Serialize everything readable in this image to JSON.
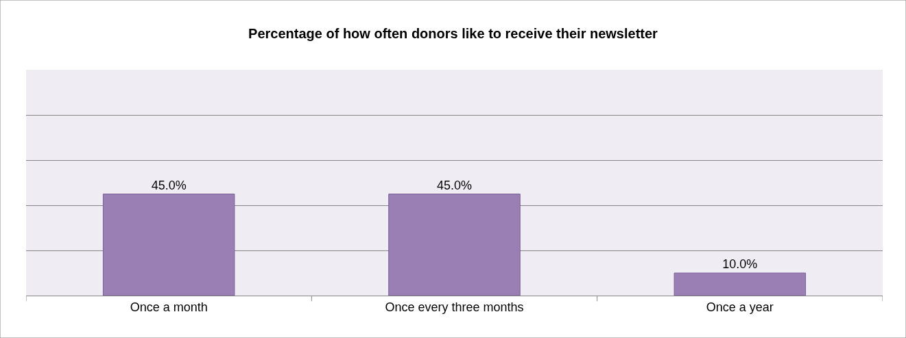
{
  "chart_data": {
    "type": "bar",
    "title": "Percentage of how often donors like to receive their newsletter",
    "categories": [
      "Once a month",
      "Once every three months",
      "Once a year"
    ],
    "values": [
      45.0,
      45.0,
      10.0
    ],
    "value_labels": [
      "45.0%",
      "45.0%",
      "10.0%"
    ],
    "color": "#9a7fb5",
    "ylim": [
      0,
      100
    ],
    "yticks": [
      {
        "value": 0,
        "label": null
      },
      {
        "value": 20,
        "label": null
      },
      {
        "value": 40,
        "label": null
      },
      {
        "value": 60,
        "label": null
      },
      {
        "value": 80,
        "label": null
      },
      {
        "value": 100,
        "label": null
      }
    ],
    "grid": "y",
    "tick_labels": "x",
    "legend": false
  }
}
